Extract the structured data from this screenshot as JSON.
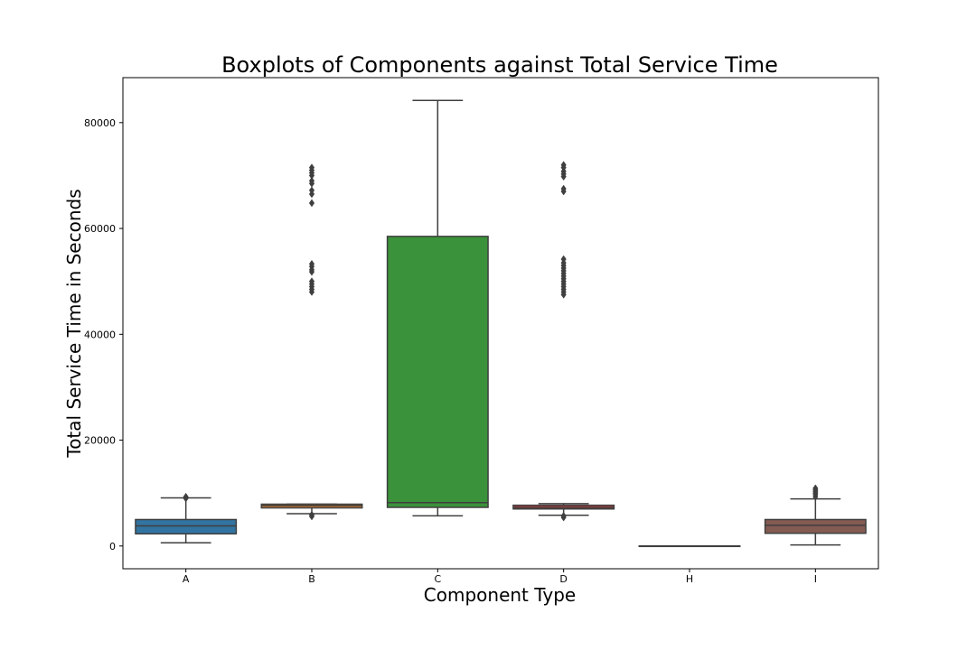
{
  "chart_data": {
    "type": "boxplot",
    "title": "Boxplots of Components against Total Service Time",
    "xlabel": "Component Type",
    "ylabel": "Total Service Time in Seconds",
    "categories": [
      "A",
      "B",
      "C",
      "D",
      "H",
      "I"
    ],
    "ylim": [
      -4300,
      88500
    ],
    "yticks": [
      0,
      20000,
      40000,
      60000,
      80000
    ],
    "grid": false,
    "boxes": [
      {
        "category": "A",
        "color": "#3274a1",
        "q1": 2300,
        "median": 3800,
        "q3": 5000,
        "whisker_low": 600,
        "whisker_high": 9100,
        "outliers": [
          9000,
          9300
        ]
      },
      {
        "category": "B",
        "color": "#e1812c",
        "q1": 7200,
        "median": 7600,
        "q3": 7900,
        "whisker_low": 6100,
        "whisker_high": 7900,
        "outliers": [
          5600,
          5900,
          48000,
          48500,
          49000,
          49500,
          50000,
          51800,
          52200,
          52800,
          53300,
          64800,
          66500,
          67200,
          68500,
          69000,
          70000,
          70500,
          71000,
          71500
        ]
      },
      {
        "category": "C",
        "color": "#3a923a",
        "q1": 7300,
        "median": 8200,
        "q3": 58500,
        "whisker_low": 5700,
        "whisker_high": 84200,
        "outliers": []
      },
      {
        "category": "D",
        "color": "#c03d3e",
        "q1": 7000,
        "median": 7300,
        "q3": 7700,
        "whisker_low": 5800,
        "whisker_high": 8000,
        "outliers": [
          5400,
          5700,
          47500,
          48000,
          48500,
          49000,
          49500,
          50000,
          50500,
          51000,
          51500,
          52000,
          52500,
          53000,
          53500,
          54200,
          67000,
          67500,
          69800,
          70300,
          70800,
          71500,
          72000
        ]
      },
      {
        "category": "H",
        "color": "#9372b2",
        "q1": 0,
        "median": 0,
        "q3": 0,
        "whisker_low": 0,
        "whisker_high": 0,
        "outliers": []
      },
      {
        "category": "I",
        "color": "#845b53",
        "q1": 2400,
        "median": 3900,
        "q3": 5000,
        "whisker_low": 200,
        "whisker_high": 8900,
        "outliers": [
          9300,
          9700,
          10000,
          10300,
          10600,
          10900
        ]
      }
    ]
  }
}
